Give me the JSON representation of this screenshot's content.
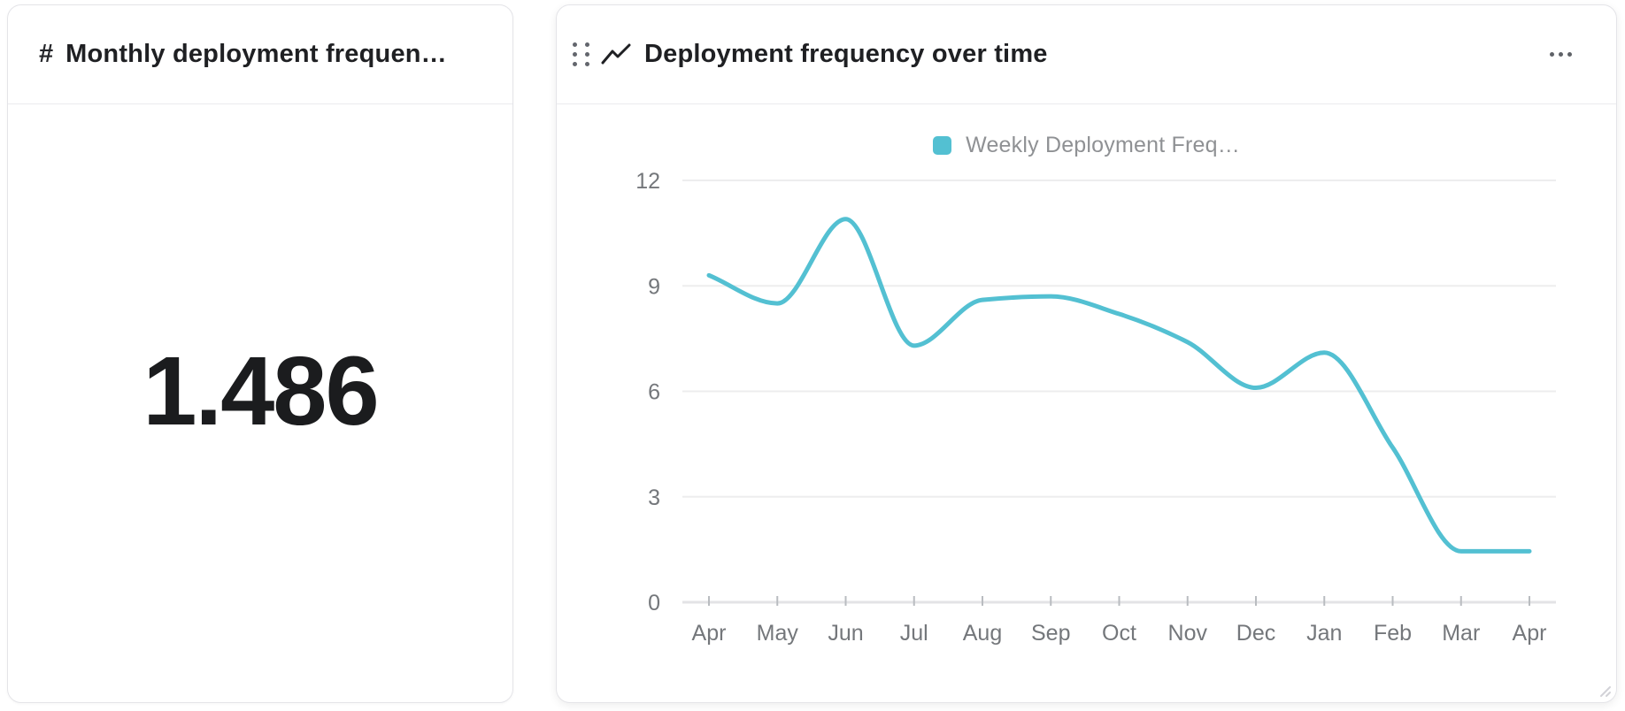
{
  "left_card": {
    "icon": "#",
    "title": "Monthly deployment frequen…",
    "value": "1.486"
  },
  "right_card": {
    "title": "Deployment frequency over time"
  },
  "chart_data": {
    "type": "line",
    "title": "Deployment frequency over time",
    "categories": [
      "Apr",
      "May",
      "Jun",
      "Jul",
      "Aug",
      "Sep",
      "Oct",
      "Nov",
      "Dec",
      "Jan",
      "Feb",
      "Mar",
      "Apr"
    ],
    "series": [
      {
        "name": "Weekly Deployment Freq…",
        "color": "#53c0d2",
        "values": [
          9.3,
          8.5,
          10.9,
          7.3,
          8.6,
          8.7,
          8.2,
          7.4,
          6.1,
          7.1,
          4.4,
          1.45,
          1.45
        ]
      }
    ],
    "ylim": [
      0,
      12
    ],
    "yticks": [
      0,
      3,
      6,
      9,
      12
    ],
    "grid": true,
    "legend_position": "top",
    "axis_label_color": "#74777b",
    "grid_color": "#ededee",
    "axis_line_color": "#e3e3e6",
    "tick_mark_color": "#b9bcc0"
  }
}
